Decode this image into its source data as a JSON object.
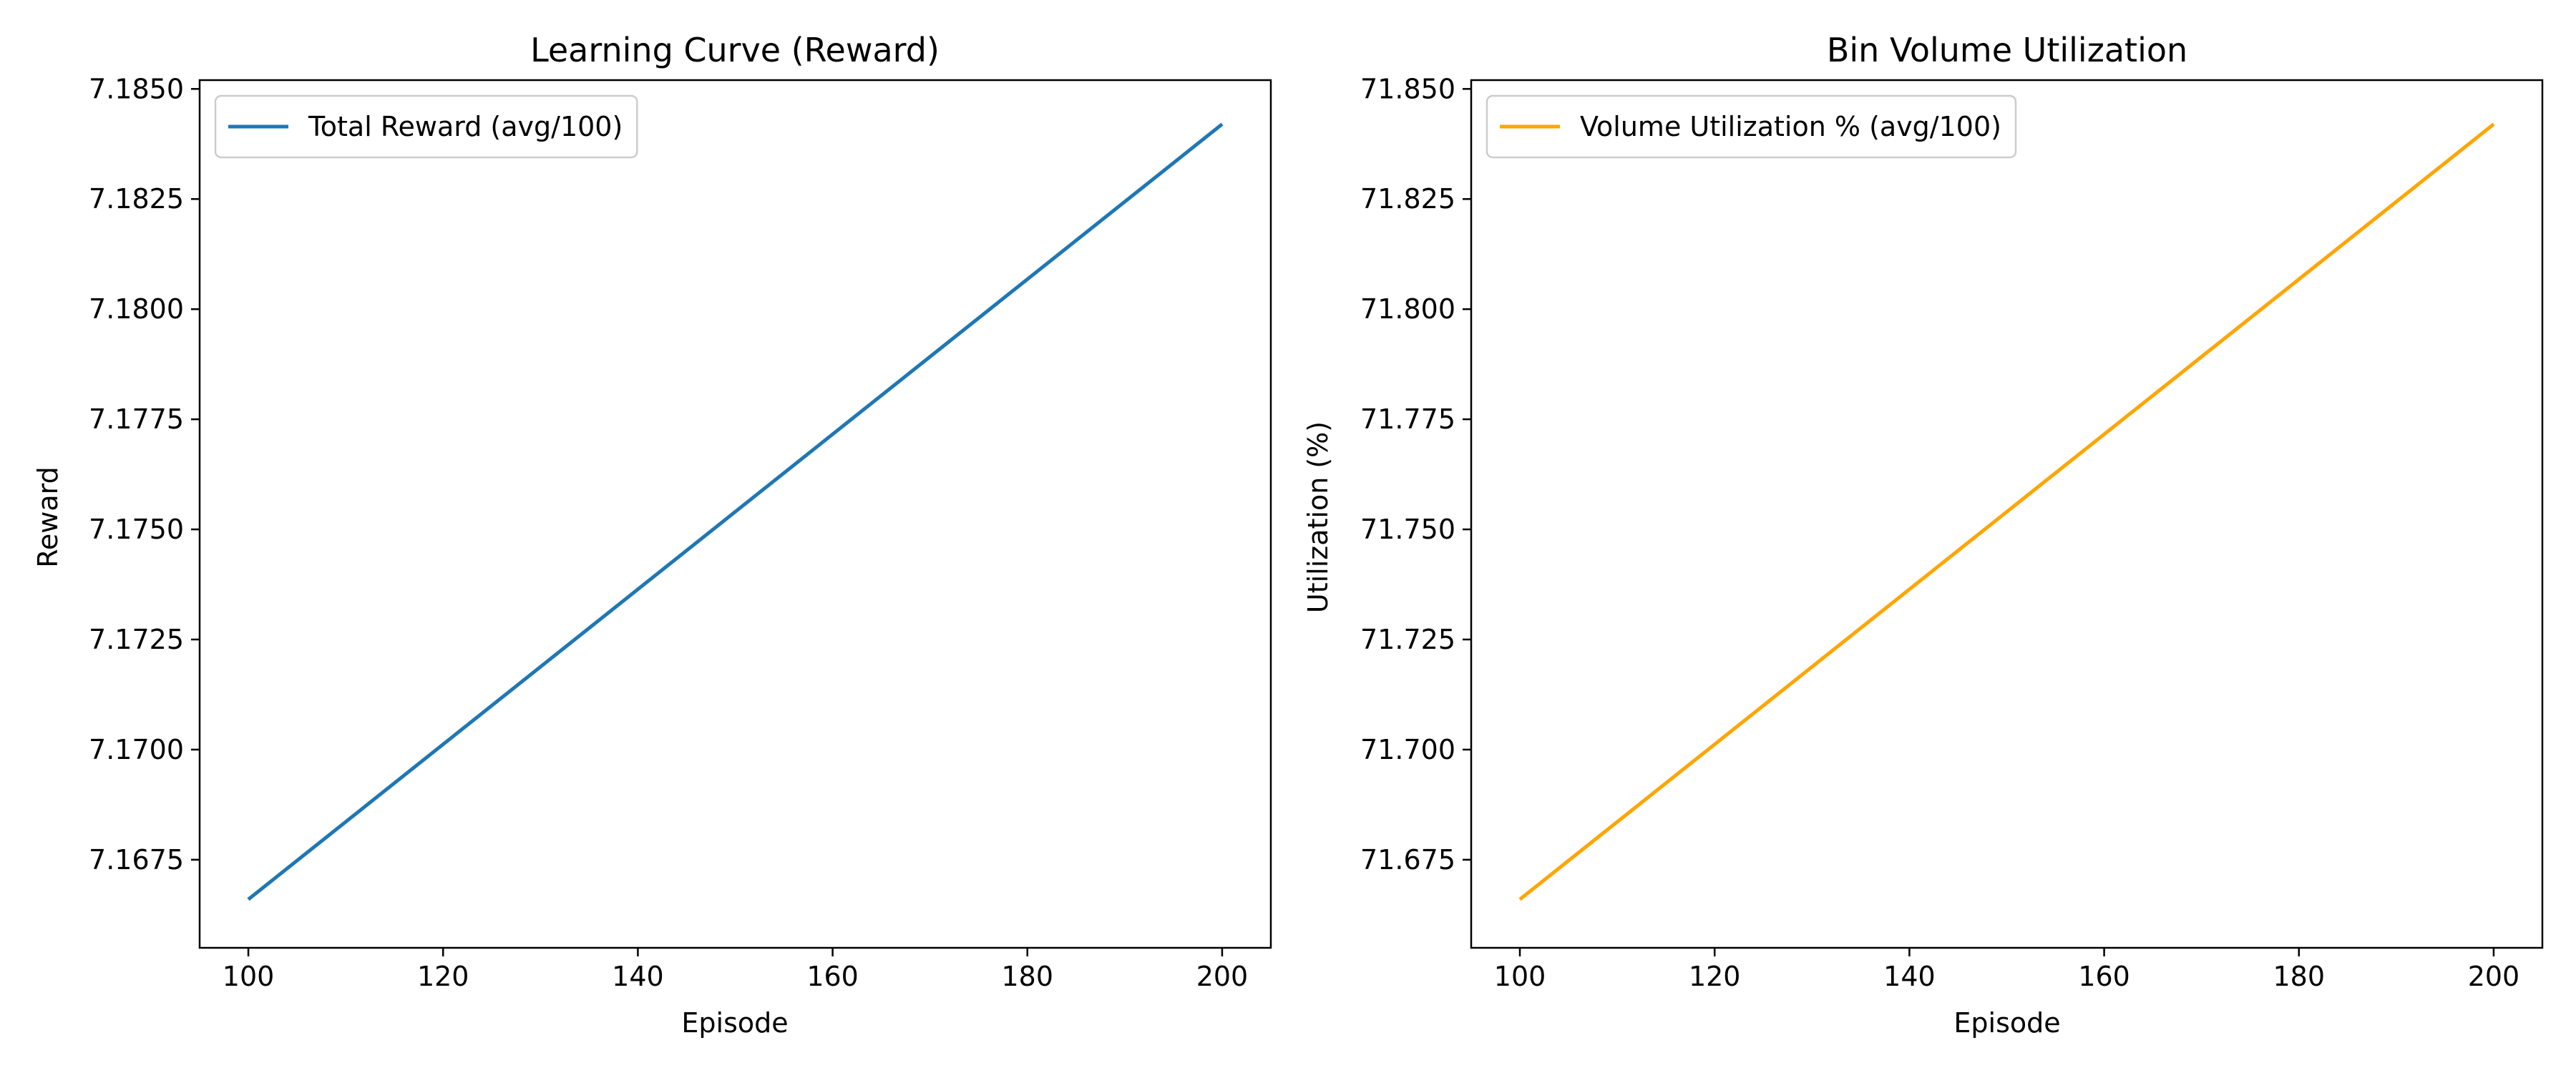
{
  "chart_data": [
    {
      "type": "line",
      "title": "Learning Curve (Reward)",
      "xlabel": "Episode",
      "ylabel": "Reward",
      "xlim": [
        95,
        205
      ],
      "ylim": [
        7.1655,
        7.1852
      ],
      "xticks": [
        100,
        120,
        140,
        160,
        180,
        200
      ],
      "yticks": [
        7.1675,
        7.17,
        7.1725,
        7.175,
        7.1775,
        7.18,
        7.1825,
        7.185
      ],
      "ytick_decimals": 4,
      "legend_position": "upper-left",
      "grid": false,
      "series": [
        {
          "name": "Total Reward (avg/100)",
          "color": "#1f77b4",
          "x": [
            100,
            200
          ],
          "y": [
            7.1666,
            7.1842
          ]
        }
      ]
    },
    {
      "type": "line",
      "title": "Bin Volume Utilization",
      "xlabel": "Episode",
      "ylabel": "Utilization (%)",
      "xlim": [
        95,
        205
      ],
      "ylim": [
        71.655,
        71.852
      ],
      "xticks": [
        100,
        120,
        140,
        160,
        180,
        200
      ],
      "yticks": [
        71.675,
        71.7,
        71.725,
        71.75,
        71.775,
        71.8,
        71.825,
        71.85
      ],
      "ytick_decimals": 3,
      "legend_position": "upper-left",
      "grid": false,
      "series": [
        {
          "name": "Volume Utilization % (avg/100)",
          "color": "#ffa500",
          "x": [
            100,
            200
          ],
          "y": [
            71.666,
            71.842
          ]
        }
      ]
    }
  ]
}
